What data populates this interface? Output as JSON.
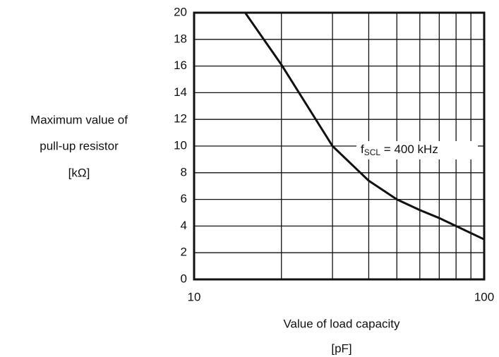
{
  "chart_data": {
    "type": "line",
    "xscale": "log",
    "ylabel": [
      "Maximum value of",
      "pull-up resistor",
      "[kΩ]"
    ],
    "xlabel": [
      "Value of load capacity",
      "[pF]"
    ],
    "annotation": {
      "text": "f",
      "sub": "SCL",
      "rest": " = 400 kHz"
    },
    "x": [
      15,
      20,
      30,
      40,
      50,
      60,
      70,
      80,
      100
    ],
    "series": [
      {
        "color": "#111111",
        "values": [
          20,
          16.1,
          10,
          7.4,
          6.0,
          5.2,
          4.6,
          4.0,
          3.0
        ]
      }
    ],
    "xlim": [
      10,
      100
    ],
    "xticks": [
      10,
      100
    ],
    "xgrid": [
      20,
      30,
      40,
      50,
      60,
      70,
      80,
      90
    ],
    "ylim": [
      0,
      20
    ],
    "yticks": [
      0,
      2,
      4,
      6,
      8,
      10,
      12,
      14,
      16,
      18,
      20
    ],
    "grid": true
  }
}
